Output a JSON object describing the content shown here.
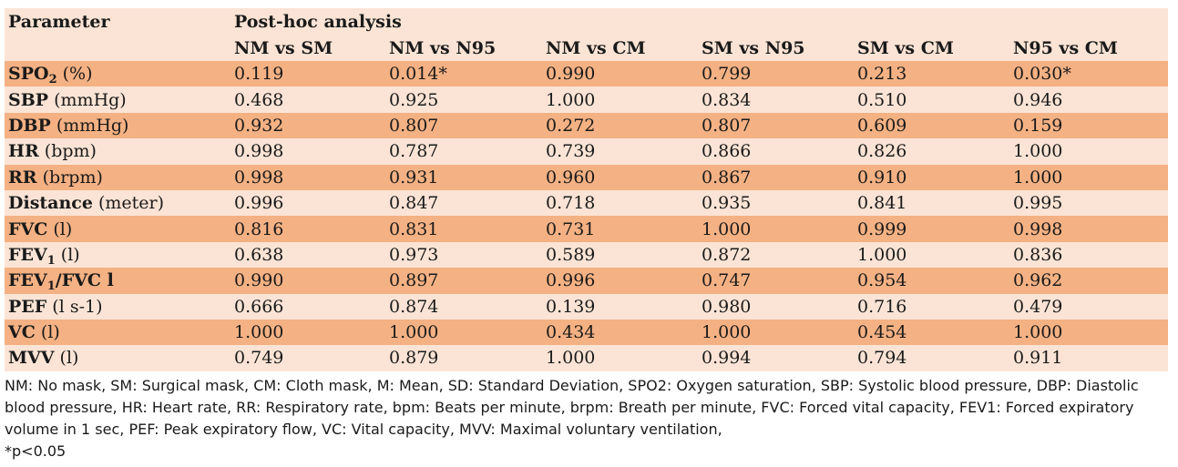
{
  "header": {
    "parameter_label": "Parameter",
    "group_label": "Post-hoc analysis",
    "columns": [
      "NM vs SM",
      "NM vs N95",
      "NM vs CM",
      "SM vs N95",
      "SM vs CM",
      "N95 vs CM"
    ]
  },
  "rows": [
    {
      "name": "SPO",
      "sub": "2",
      "unit": " (%)",
      "values": [
        "0.119",
        "0.014*",
        "0.990",
        "0.799",
        "0.213",
        "0.030*"
      ]
    },
    {
      "name": "SBP",
      "sub": "",
      "unit": " (mmHg)",
      "values": [
        "0.468",
        "0.925",
        "1.000",
        "0.834",
        "0.510",
        "0.946"
      ]
    },
    {
      "name": "DBP",
      "sub": "",
      "unit": " (mmHg)",
      "values": [
        "0.932",
        "0.807",
        "0.272",
        "0.807",
        "0.609",
        "0.159"
      ]
    },
    {
      "name": "HR",
      "sub": "",
      "unit": " (bpm)",
      "values": [
        "0.998",
        "0.787",
        "0.739",
        "0.866",
        "0.826",
        "1.000"
      ]
    },
    {
      "name": "RR",
      "sub": "",
      "unit": " (brpm)",
      "values": [
        "0.998",
        "0.931",
        "0.960",
        "0.867",
        "0.910",
        "1.000"
      ]
    },
    {
      "name": "Distance",
      "sub": "",
      "unit": " (meter)",
      "values": [
        "0.996",
        "0.847",
        "0.718",
        "0.935",
        "0.841",
        "0.995"
      ]
    },
    {
      "name": "FVC",
      "sub": "",
      "unit": " (l)",
      "values": [
        "0.816",
        "0.831",
        "0.731",
        "1.000",
        "0.999",
        "0.998"
      ]
    },
    {
      "name": "FEV",
      "sub": "1",
      "unit": " (l)",
      "values": [
        "0.638",
        "0.973",
        "0.589",
        "0.872",
        "1.000",
        "0.836"
      ]
    },
    {
      "name": "FEV",
      "sub": "1",
      "name_suffix": "/FVC l",
      "unit": "",
      "values": [
        "0.990",
        "0.897",
        "0.996",
        "0.747",
        "0.954",
        "0.962"
      ]
    },
    {
      "name": "PEF",
      "sub": "",
      "unit": " (l s-1)",
      "values": [
        "0.666",
        "0.874",
        "0.139",
        "0.980",
        "0.716",
        "0.479"
      ]
    },
    {
      "name": "VC",
      "sub": "",
      "unit": " (l)",
      "values": [
        "1.000",
        "1.000",
        "0.434",
        "1.000",
        "0.454",
        "1.000"
      ]
    },
    {
      "name": "MVV",
      "sub": "",
      "unit": " (l)",
      "values": [
        "0.749",
        "0.879",
        "1.000",
        "0.994",
        "0.794",
        "0.911"
      ]
    }
  ],
  "footnote": {
    "abbreviations": "NM: No mask, SM: Surgical mask, CM: Cloth mask, M: Mean, SD: Standard Deviation, SPO2: Oxygen saturation, SBP: Systolic blood pressure, DBP: Diastolic blood pressure, HR: Heart rate, RR: Respiratory rate, bpm: Beats per minute, brpm: Breath per minute, FVC: Forced vital capacity, FEV1: Forced expiratory volume in 1 sec, PEF: Peak expiratory flow, VC: Vital capacity, MVV: Maximal voluntary ventilation,",
    "significance": "*p<0.05"
  },
  "colors": {
    "header_bg": "#fbe4d5",
    "row_dark": "#f4b183",
    "row_light": "#fbe4d5"
  }
}
